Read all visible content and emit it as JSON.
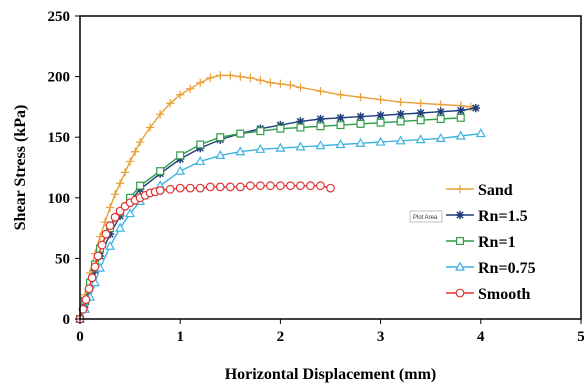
{
  "chart_data": {
    "type": "line",
    "title": "",
    "xlabel": "Horizontal Displacement (mm)",
    "ylabel": "Shear Stress (kPa)",
    "xlim": [
      0,
      5
    ],
    "ylim": [
      0,
      250
    ],
    "xticks": [
      0,
      1,
      2,
      3,
      4,
      5
    ],
    "yticks": [
      0,
      50,
      100,
      150,
      200,
      250
    ],
    "grid": false,
    "legend_position": "right",
    "tooltip": "Plot Area",
    "series": [
      {
        "name": "Sand",
        "color": "#E8A03A",
        "marker": "plus",
        "x": [
          0,
          0.05,
          0.1,
          0.15,
          0.2,
          0.25,
          0.3,
          0.35,
          0.4,
          0.45,
          0.5,
          0.55,
          0.6,
          0.7,
          0.8,
          0.9,
          1.0,
          1.1,
          1.2,
          1.3,
          1.4,
          1.5,
          1.6,
          1.7,
          1.8,
          1.9,
          2.0,
          2.1,
          2.2,
          2.4,
          2.6,
          2.8,
          3.0,
          3.2,
          3.4,
          3.6,
          3.8,
          3.9
        ],
        "y": [
          0,
          20,
          38,
          54,
          68,
          80,
          92,
          103,
          112,
          121,
          130,
          138,
          146,
          158,
          169,
          178,
          185,
          190,
          195,
          199,
          201,
          201,
          200,
          199,
          197,
          195,
          194,
          193,
          191,
          188,
          185,
          183,
          181,
          179,
          178,
          177,
          176,
          175
        ]
      },
      {
        "name": "Rn=1.5",
        "color": "#1F3E7A",
        "marker": "star",
        "x": [
          0,
          0.05,
          0.1,
          0.15,
          0.2,
          0.3,
          0.4,
          0.5,
          0.6,
          0.8,
          1.0,
          1.2,
          1.4,
          1.6,
          1.8,
          2.0,
          2.2,
          2.4,
          2.6,
          2.8,
          3.0,
          3.2,
          3.4,
          3.6,
          3.8,
          3.95
        ],
        "y": [
          0,
          12,
          26,
          40,
          52,
          70,
          85,
          97,
          107,
          120,
          132,
          141,
          148,
          153,
          157,
          160,
          163,
          165,
          166,
          167,
          168,
          169,
          170,
          171,
          172,
          174
        ]
      },
      {
        "name": "Rn=1",
        "color": "#2E9E46",
        "marker": "square",
        "x": [
          0,
          0.05,
          0.1,
          0.15,
          0.2,
          0.3,
          0.4,
          0.5,
          0.6,
          0.8,
          1.0,
          1.2,
          1.4,
          1.6,
          1.8,
          2.0,
          2.2,
          2.4,
          2.6,
          2.8,
          3.0,
          3.2,
          3.4,
          3.6,
          3.8
        ],
        "y": [
          0,
          15,
          30,
          45,
          58,
          75,
          88,
          100,
          110,
          122,
          135,
          144,
          150,
          153,
          155,
          157,
          158,
          159,
          160,
          161,
          162,
          163,
          164,
          165,
          166
        ]
      },
      {
        "name": "Rn=0.75",
        "color": "#3DB4E0",
        "marker": "triangle",
        "x": [
          0,
          0.05,
          0.1,
          0.15,
          0.2,
          0.3,
          0.4,
          0.5,
          0.6,
          0.8,
          1.0,
          1.2,
          1.4,
          1.6,
          1.8,
          2.0,
          2.2,
          2.4,
          2.6,
          2.8,
          3.0,
          3.2,
          3.4,
          3.6,
          3.8,
          4.0
        ],
        "y": [
          0,
          8,
          18,
          30,
          42,
          60,
          75,
          87,
          97,
          110,
          122,
          130,
          135,
          138,
          140,
          141,
          142,
          143,
          144,
          145,
          146,
          147,
          148,
          149,
          151,
          153
        ]
      },
      {
        "name": "Smooth",
        "color": "#E03030",
        "marker": "circle",
        "x": [
          0,
          0.03,
          0.06,
          0.09,
          0.12,
          0.15,
          0.18,
          0.22,
          0.26,
          0.3,
          0.35,
          0.4,
          0.45,
          0.5,
          0.55,
          0.6,
          0.65,
          0.7,
          0.75,
          0.8,
          0.9,
          1.0,
          1.1,
          1.2,
          1.3,
          1.4,
          1.5,
          1.6,
          1.7,
          1.8,
          1.9,
          2.0,
          2.1,
          2.2,
          2.3,
          2.4,
          2.5
        ],
        "y": [
          0,
          8,
          16,
          25,
          34,
          43,
          52,
          61,
          70,
          77,
          84,
          89,
          93,
          96,
          98,
          100,
          102,
          104,
          105,
          106,
          107,
          108,
          108,
          108,
          109,
          109,
          109,
          109,
          110,
          110,
          110,
          110,
          110,
          110,
          110,
          110,
          108
        ]
      }
    ]
  }
}
